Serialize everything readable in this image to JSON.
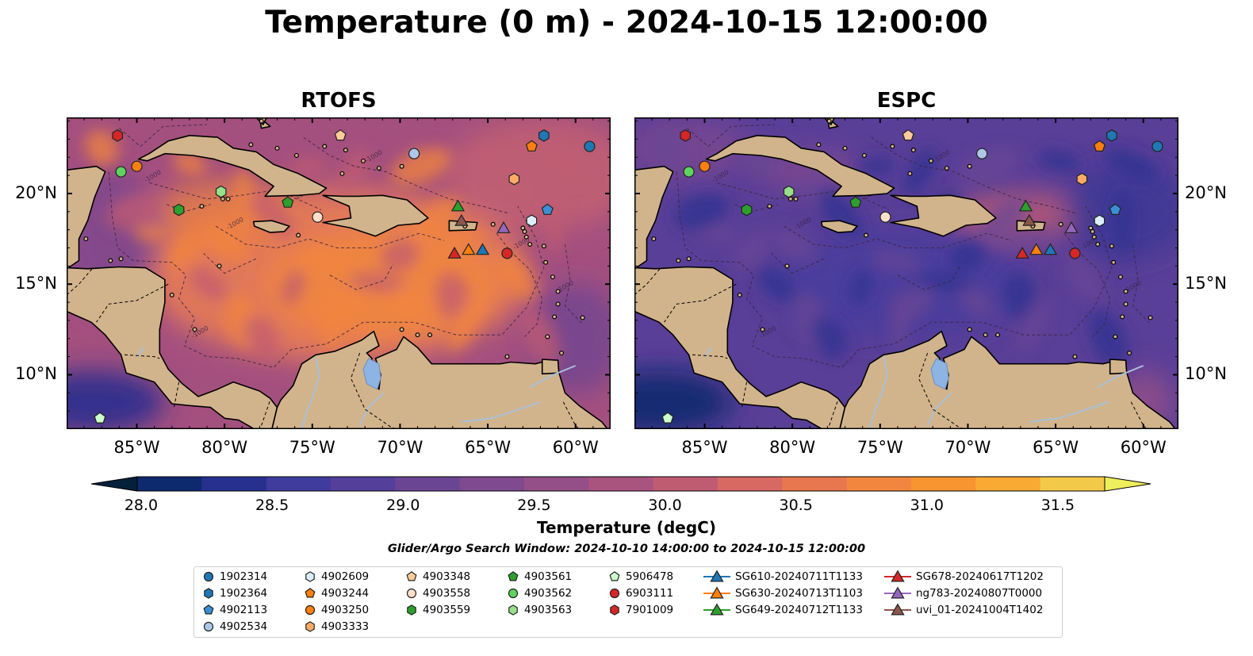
{
  "title": "Temperature (0 m) - 2024-10-15 12:00:00",
  "panels": [
    {
      "title": "RTOFS",
      "mode": "warm"
    },
    {
      "title": "ESPC",
      "mode": "cool"
    }
  ],
  "map_extent": {
    "lon_min": -89,
    "lon_max": -58,
    "lat_min": 7,
    "lat_max": 24.2
  },
  "lon_ticks": [
    {
      "value": -85,
      "label": "85°W"
    },
    {
      "value": -80,
      "label": "80°W"
    },
    {
      "value": -75,
      "label": "75°W"
    },
    {
      "value": -70,
      "label": "70°W"
    },
    {
      "value": -65,
      "label": "65°W"
    },
    {
      "value": -60,
      "label": "60°W"
    }
  ],
  "lat_ticks": [
    {
      "value": 20,
      "label": "20°N"
    },
    {
      "value": 15,
      "label": "15°N"
    },
    {
      "value": 10,
      "label": "10°N"
    }
  ],
  "contour_label": "-1000",
  "colorbar": {
    "label": "Temperature (degC)",
    "min": 28.0,
    "max": 31.5,
    "ticks": [
      "28.0",
      "28.5",
      "29.0",
      "29.5",
      "30.0",
      "30.5",
      "31.0",
      "31.5"
    ],
    "colors": [
      "#05203a",
      "#0e2a6e",
      "#272f8f",
      "#3f3c9e",
      "#543f9a",
      "#6a4594",
      "#7f4a8f",
      "#954f88",
      "#a9547f",
      "#c05c72",
      "#d76962",
      "#e8774f",
      "#f2863f",
      "#f89531",
      "#f9aa33",
      "#f3c94a",
      "#efee5c"
    ]
  },
  "colors": {
    "land": "#d2b48c",
    "lake": "#8db4e2",
    "river": "#a8c0d8"
  },
  "search_window": "Glider/Argo Search Window: 2024-10-10 14:00:00 to 2024-10-15 12:00:00",
  "legend": {
    "columns": [
      [
        {
          "label": "1902314",
          "marker": "circle",
          "color": "#1f77b4"
        },
        {
          "label": "1902364",
          "marker": "hexagon",
          "color": "#1f77b4"
        },
        {
          "label": "4902113",
          "marker": "pentagon",
          "color": "#3a8fd4"
        },
        {
          "label": "4902534",
          "marker": "circle",
          "color": "#aec7e8"
        }
      ],
      [
        {
          "label": "4902609",
          "marker": "hexagon",
          "color": "#dceefa"
        },
        {
          "label": "4903244",
          "marker": "pentagon",
          "color": "#ff7f0e"
        },
        {
          "label": "4903250",
          "marker": "circle",
          "color": "#ff7f0e"
        },
        {
          "label": "4903333",
          "marker": "hexagon",
          "color": "#ffaa66"
        }
      ],
      [
        {
          "label": "4903348",
          "marker": "pentagon",
          "color": "#ffcc99"
        },
        {
          "label": "4903558",
          "marker": "circle",
          "color": "#ffe0c8"
        },
        {
          "label": "4903559",
          "marker": "hexagon",
          "color": "#2ca02c"
        }
      ],
      [
        {
          "label": "4903561",
          "marker": "pentagon",
          "color": "#2ca02c"
        },
        {
          "label": "4903562",
          "marker": "circle",
          "color": "#5fd35f"
        },
        {
          "label": "4903563",
          "marker": "hexagon",
          "color": "#98df8a"
        }
      ],
      [
        {
          "label": "5906478",
          "marker": "pentagon",
          "color": "#ccffcc"
        },
        {
          "label": "6903111",
          "marker": "circle",
          "color": "#d62728"
        },
        {
          "label": "7901009",
          "marker": "hexagon",
          "color": "#d62728"
        }
      ],
      [
        {
          "label": "SG610-20240711T1133",
          "marker": "triangle",
          "color": "#1f77b4"
        },
        {
          "label": "SG630-20240713T1103",
          "marker": "triangle",
          "color": "#ff7f0e"
        },
        {
          "label": "SG649-20240712T1133",
          "marker": "triangle",
          "color": "#2ca02c"
        }
      ],
      [
        {
          "label": "SG678-20240617T1202",
          "marker": "triangle",
          "color": "#d62728"
        },
        {
          "label": "ng783-20240807T0000",
          "marker": "triangle",
          "color": "#9467bd"
        },
        {
          "label": "uvi_01-20241004T1402",
          "marker": "triangle",
          "color": "#8c564b"
        }
      ]
    ]
  },
  "observations": [
    {
      "id": "1902314",
      "lon": -59.2,
      "lat": 22.6
    },
    {
      "id": "1902364",
      "lon": -61.8,
      "lat": 23.2
    },
    {
      "id": "4902113",
      "lon": -61.6,
      "lat": 19.1
    },
    {
      "id": "4902534",
      "lon": -69.2,
      "lat": 22.2
    },
    {
      "id": "4902609",
      "lon": -62.5,
      "lat": 18.5
    },
    {
      "id": "4903244",
      "lon": -62.5,
      "lat": 22.6
    },
    {
      "id": "4903250",
      "lon": -85.0,
      "lat": 21.5
    },
    {
      "id": "4903333",
      "lon": -63.5,
      "lat": 20.8
    },
    {
      "id": "4903348",
      "lon": -73.4,
      "lat": 23.2
    },
    {
      "id": "4903558",
      "lon": -74.7,
      "lat": 18.7
    },
    {
      "id": "4903559",
      "lon": -82.6,
      "lat": 19.1
    },
    {
      "id": "4903561",
      "lon": -76.4,
      "lat": 19.5
    },
    {
      "id": "4903562",
      "lon": -85.9,
      "lat": 21.2
    },
    {
      "id": "4903563",
      "lon": -80.2,
      "lat": 20.1
    },
    {
      "id": "5906478",
      "lon": -87.1,
      "lat": 7.6
    },
    {
      "id": "6903111",
      "lon": -63.9,
      "lat": 16.7
    },
    {
      "id": "7901009",
      "lon": -86.1,
      "lat": 23.2
    },
    {
      "id": "SG610-20240711T1133",
      "lon": -65.3,
      "lat": 16.9
    },
    {
      "id": "SG630-20240713T1103",
      "lon": -66.1,
      "lat": 16.9
    },
    {
      "id": "SG649-20240712T1133",
      "lon": -66.7,
      "lat": 19.3
    },
    {
      "id": "SG678-20240617T1202",
      "lon": -66.9,
      "lat": 16.7
    },
    {
      "id": "ng783-20240807T0000",
      "lon": -64.1,
      "lat": 18.1
    },
    {
      "id": "uvi_01-20241004T1402",
      "lon": -66.5,
      "lat": 18.5
    }
  ]
}
